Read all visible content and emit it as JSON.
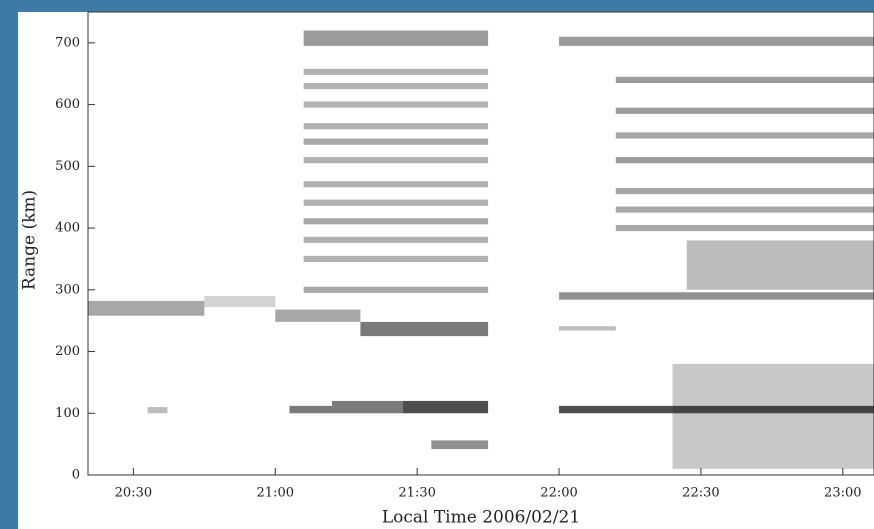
{
  "chart_data": {
    "type": "range-time",
    "xlabel": "Local Time 2006/02/21",
    "ylabel": "Range (km)",
    "xlim": [
      20.34,
      23.11
    ],
    "ylim": [
      0,
      750
    ],
    "xticks": [
      {
        "value": 20.5,
        "label": "20:30"
      },
      {
        "value": 21.0,
        "label": "21:00"
      },
      {
        "value": 21.5,
        "label": "21:30"
      },
      {
        "value": 22.0,
        "label": "22:00"
      },
      {
        "value": 22.5,
        "label": "22:30"
      },
      {
        "value": 23.0,
        "label": "23:00"
      }
    ],
    "yticks": [
      0,
      100,
      200,
      300,
      400,
      500,
      600,
      700
    ],
    "color": "#222222",
    "echoes": [
      {
        "t": [
          20.34,
          20.75
        ],
        "range": [
          258,
          282
        ],
        "intensity": 0.4
      },
      {
        "t": [
          20.75,
          21.0
        ],
        "range": [
          272,
          290
        ],
        "intensity": 0.2
      },
      {
        "t": [
          21.0,
          21.3
        ],
        "range": [
          248,
          268
        ],
        "intensity": 0.4
      },
      {
        "t": [
          21.3,
          21.75
        ],
        "range": [
          225,
          248
        ],
        "intensity": 0.6
      },
      {
        "t": [
          22.0,
          22.2
        ],
        "range": [
          234,
          241
        ],
        "intensity": 0.3
      },
      {
        "t": [
          20.55,
          20.62
        ],
        "range": [
          100,
          110
        ],
        "intensity": 0.3
      },
      {
        "t": [
          21.05,
          21.2
        ],
        "range": [
          100,
          112
        ],
        "intensity": 0.6
      },
      {
        "t": [
          21.2,
          21.45
        ],
        "range": [
          100,
          120
        ],
        "intensity": 0.6
      },
      {
        "t": [
          21.45,
          21.75
        ],
        "range": [
          100,
          120
        ],
        "intensity": 0.8
      },
      {
        "t": [
          21.55,
          21.75
        ],
        "range": [
          42,
          56
        ],
        "intensity": 0.5
      },
      {
        "t": [
          22.0,
          23.11
        ],
        "range": [
          100,
          112
        ],
        "intensity": 0.8
      },
      {
        "t": [
          21.1,
          21.75
        ],
        "range": [
          295,
          305
        ],
        "intensity": 0.4
      },
      {
        "t": [
          21.1,
          21.75
        ],
        "range": [
          345,
          355
        ],
        "intensity": 0.35
      },
      {
        "t": [
          21.1,
          21.75
        ],
        "range": [
          376,
          386
        ],
        "intensity": 0.35
      },
      {
        "t": [
          21.1,
          21.75
        ],
        "range": [
          406,
          416
        ],
        "intensity": 0.4
      },
      {
        "t": [
          21.1,
          21.75
        ],
        "range": [
          436,
          446
        ],
        "intensity": 0.35
      },
      {
        "t": [
          21.1,
          21.75
        ],
        "range": [
          466,
          476
        ],
        "intensity": 0.35
      },
      {
        "t": [
          21.1,
          21.75
        ],
        "range": [
          505,
          515
        ],
        "intensity": 0.35
      },
      {
        "t": [
          21.1,
          21.75
        ],
        "range": [
          535,
          545
        ],
        "intensity": 0.4
      },
      {
        "t": [
          21.1,
          21.75
        ],
        "range": [
          560,
          570
        ],
        "intensity": 0.35
      },
      {
        "t": [
          21.1,
          21.75
        ],
        "range": [
          595,
          605
        ],
        "intensity": 0.35
      },
      {
        "t": [
          21.1,
          21.75
        ],
        "range": [
          625,
          635
        ],
        "intensity": 0.35
      },
      {
        "t": [
          21.1,
          21.75
        ],
        "range": [
          648,
          658
        ],
        "intensity": 0.35
      },
      {
        "t": [
          21.1,
          21.75
        ],
        "range": [
          695,
          720
        ],
        "intensity": 0.45
      },
      {
        "t": [
          22.0,
          23.11
        ],
        "range": [
          284,
          296
        ],
        "intensity": 0.5
      },
      {
        "t": [
          22.2,
          23.11
        ],
        "range": [
          395,
          405
        ],
        "intensity": 0.4
      },
      {
        "t": [
          22.2,
          23.11
        ],
        "range": [
          425,
          435
        ],
        "intensity": 0.4
      },
      {
        "t": [
          22.2,
          23.11
        ],
        "range": [
          455,
          465
        ],
        "intensity": 0.4
      },
      {
        "t": [
          22.2,
          23.11
        ],
        "range": [
          505,
          515
        ],
        "intensity": 0.45
      },
      {
        "t": [
          22.2,
          23.11
        ],
        "range": [
          545,
          555
        ],
        "intensity": 0.4
      },
      {
        "t": [
          22.2,
          23.11
        ],
        "range": [
          585,
          595
        ],
        "intensity": 0.45
      },
      {
        "t": [
          22.2,
          23.11
        ],
        "range": [
          635,
          645
        ],
        "intensity": 0.45
      },
      {
        "t": [
          22.0,
          23.11
        ],
        "range": [
          695,
          710
        ],
        "intensity": 0.45
      },
      {
        "t": [
          22.4,
          23.11
        ],
        "range": [
          10,
          180
        ],
        "intensity": 0.25
      },
      {
        "t": [
          22.45,
          23.11
        ],
        "range": [
          300,
          380
        ],
        "intensity": 0.3
      }
    ]
  }
}
